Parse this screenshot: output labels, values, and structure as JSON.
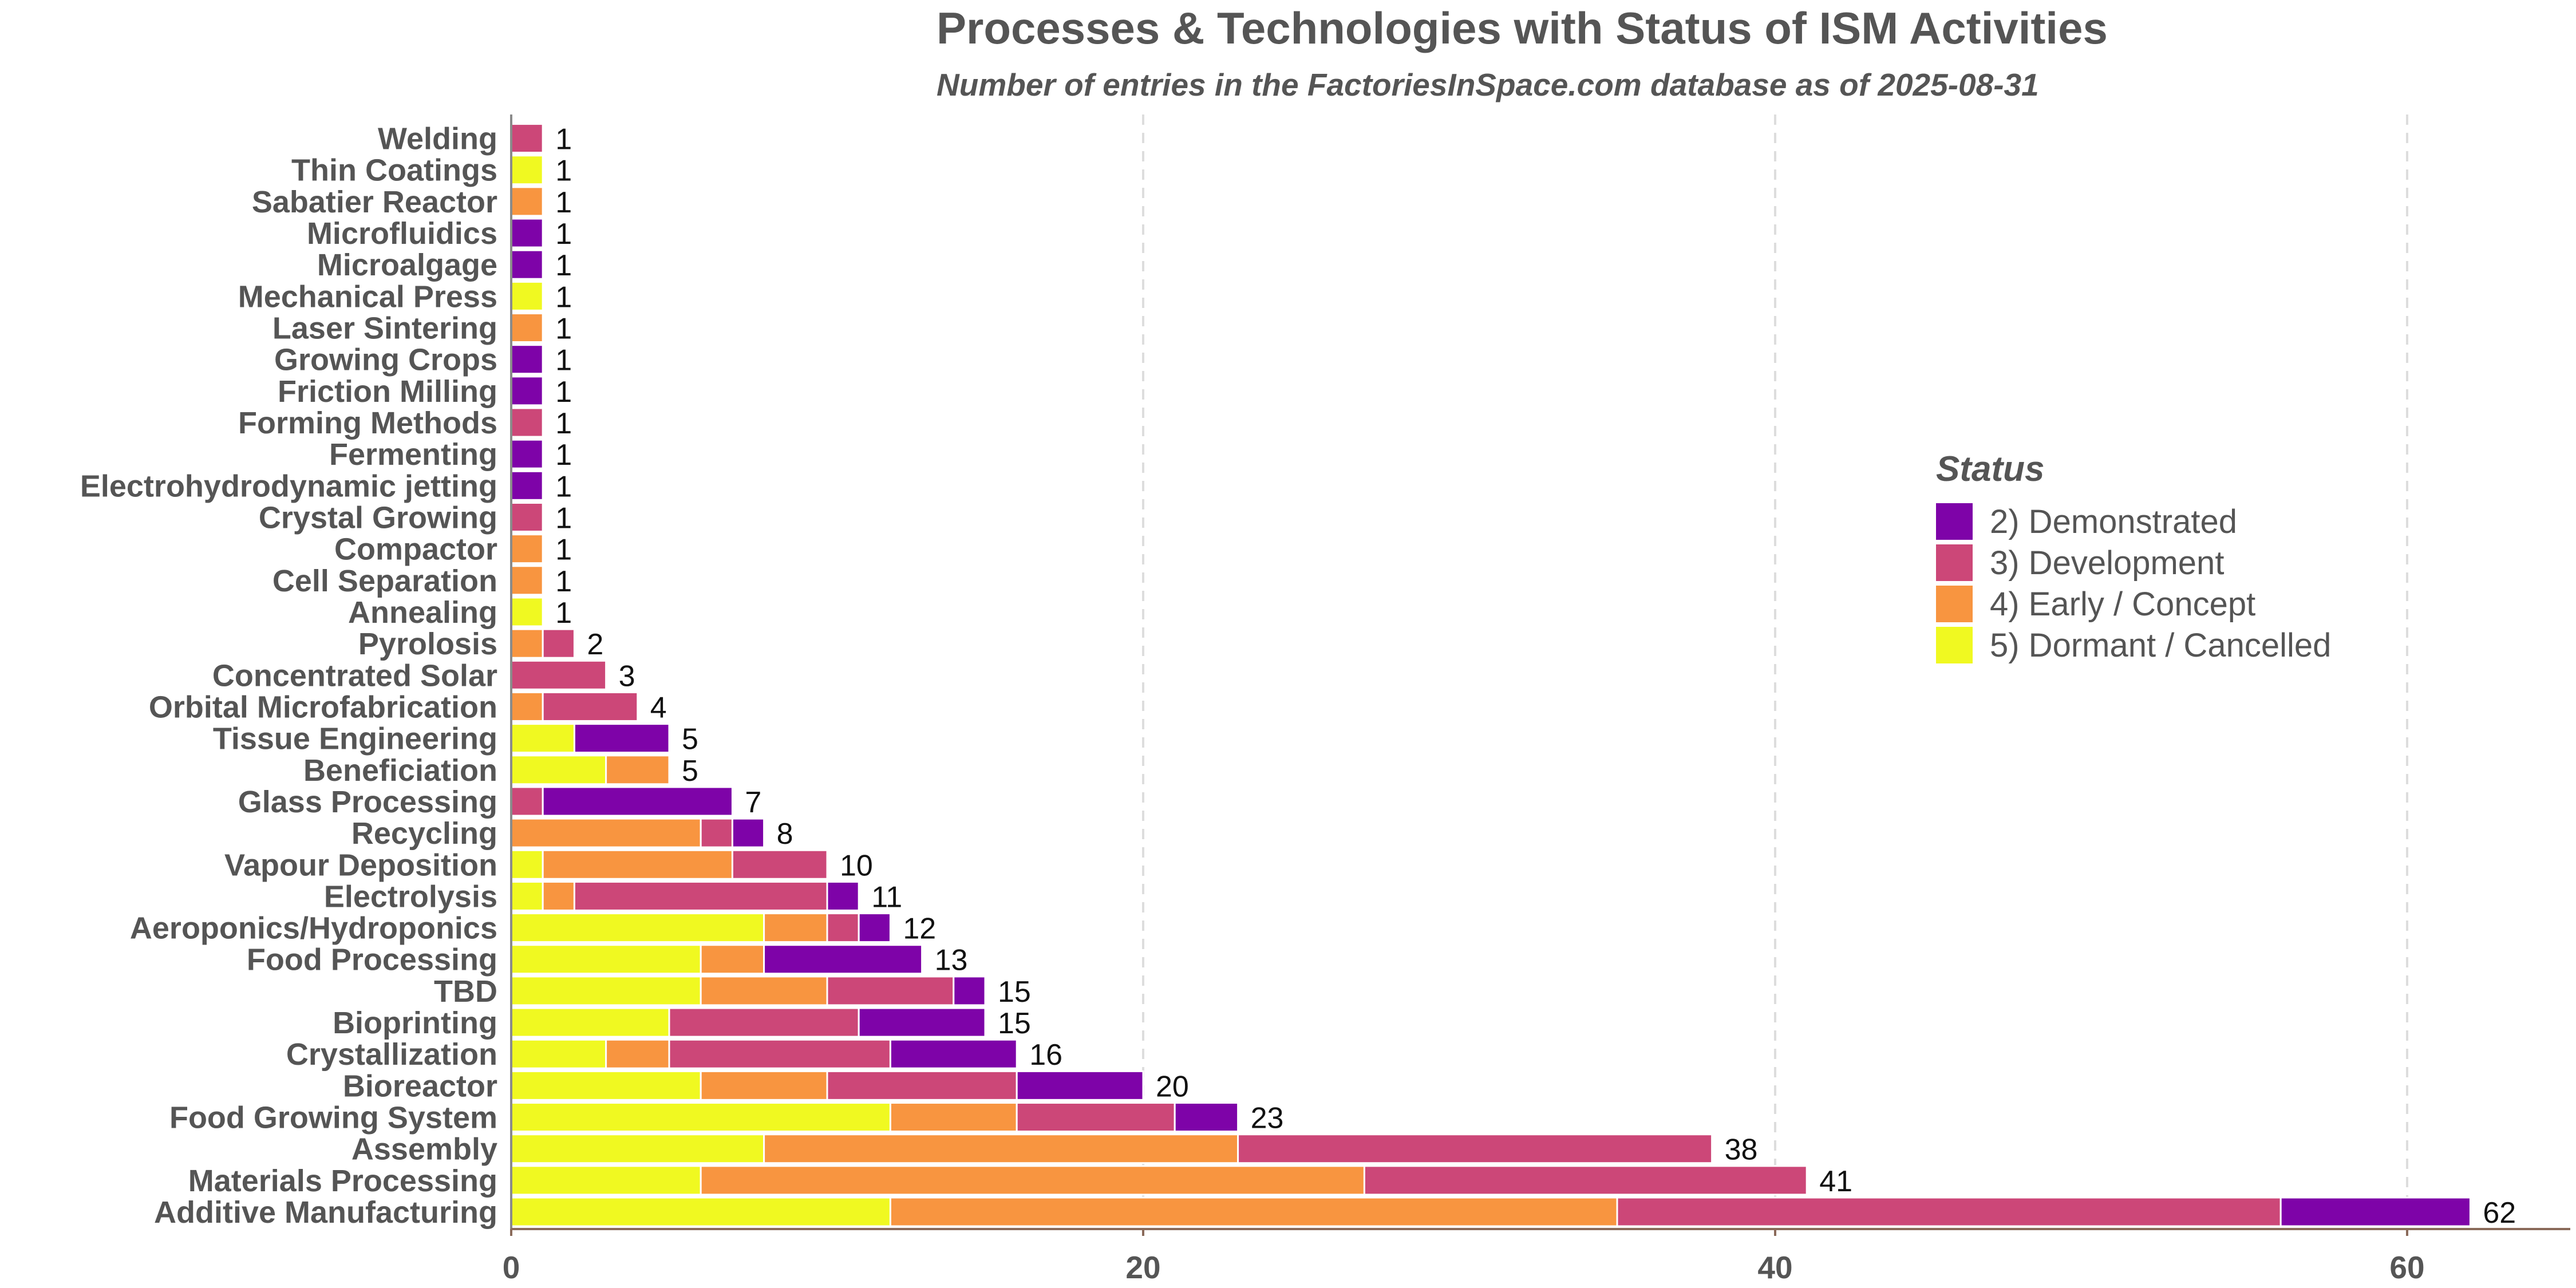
{
  "chart_data": {
    "type": "bar",
    "orientation": "horizontal",
    "stacked": true,
    "title": "Processes & Technologies with Status of ISM Activities",
    "subtitle": "Number of entries in the FactoriesInSpace.com database as of 2025-08-31",
    "xlim": [
      0,
      65
    ],
    "x_ticks": [
      0,
      20,
      40,
      60
    ],
    "grid": "vertical dashed",
    "legend": {
      "title": "Status",
      "placement": "right",
      "items": [
        {
          "label": "2)  Demonstrated",
          "color": "#7E03A8"
        },
        {
          "label": "3)  Development",
          "color": "#CC4778"
        },
        {
          "label": "4)  Early / Concept",
          "color": "#F89540"
        },
        {
          "label": "5)  Dormant / Cancelled",
          "color": "#F0F921"
        }
      ]
    },
    "categories": [
      "Welding",
      "Thin Coatings",
      "Sabatier Reactor",
      "Microfluidics",
      "Microalgage",
      "Mechanical Press",
      "Laser Sintering",
      "Growing Crops",
      "Friction Milling",
      "Forming Methods",
      "Fermenting",
      "Electrohydrodynamic jetting",
      "Crystal Growing",
      "Compactor",
      "Cell Separation",
      "Annealing",
      "Pyrolosis",
      "Concentrated Solar",
      "Orbital Microfabrication",
      "Tissue Engineering",
      "Beneficiation",
      "Glass Processing",
      "Recycling",
      "Vapour Deposition",
      "Electrolysis",
      "Aeroponics/Hydroponics",
      "Food Processing",
      "TBD",
      "Bioprinting",
      "Crystallization",
      "Bioreactor",
      "Food Growing System",
      "Assembly",
      "Materials Processing",
      "Additive Manufacturing"
    ],
    "series": [
      {
        "name": "5)  Dormant / Cancelled",
        "color": "#F0F921",
        "values": [
          0,
          1,
          0,
          0,
          0,
          1,
          0,
          0,
          0,
          0,
          0,
          0,
          0,
          0,
          0,
          1,
          0,
          0,
          0,
          2,
          3,
          0,
          0,
          1,
          1,
          8,
          6,
          6,
          5,
          3,
          6,
          12,
          8,
          6,
          12
        ]
      },
      {
        "name": "4)  Early / Concept",
        "color": "#F89540",
        "values": [
          0,
          0,
          1,
          0,
          0,
          0,
          1,
          0,
          0,
          0,
          0,
          0,
          0,
          1,
          1,
          0,
          1,
          0,
          1,
          0,
          2,
          0,
          6,
          6,
          1,
          2,
          2,
          4,
          0,
          2,
          4,
          4,
          15,
          21,
          23
        ]
      },
      {
        "name": "3)  Development",
        "color": "#CC4778",
        "values": [
          1,
          0,
          0,
          0,
          0,
          0,
          0,
          0,
          0,
          1,
          0,
          0,
          1,
          0,
          0,
          0,
          1,
          3,
          3,
          0,
          0,
          1,
          1,
          3,
          8,
          1,
          0,
          4,
          6,
          7,
          6,
          5,
          15,
          14,
          21
        ]
      },
      {
        "name": "2)  Demonstrated",
        "color": "#7E03A8",
        "values": [
          0,
          0,
          0,
          1,
          1,
          0,
          0,
          1,
          1,
          0,
          1,
          1,
          0,
          0,
          0,
          0,
          0,
          0,
          0,
          3,
          0,
          6,
          1,
          0,
          1,
          1,
          5,
          1,
          4,
          4,
          4,
          2,
          0,
          0,
          6
        ]
      }
    ],
    "totals": [
      1,
      1,
      1,
      1,
      1,
      1,
      1,
      1,
      1,
      1,
      1,
      1,
      1,
      1,
      1,
      1,
      2,
      3,
      4,
      5,
      5,
      7,
      8,
      10,
      11,
      12,
      13,
      15,
      15,
      16,
      20,
      23,
      38,
      41,
      62
    ]
  }
}
